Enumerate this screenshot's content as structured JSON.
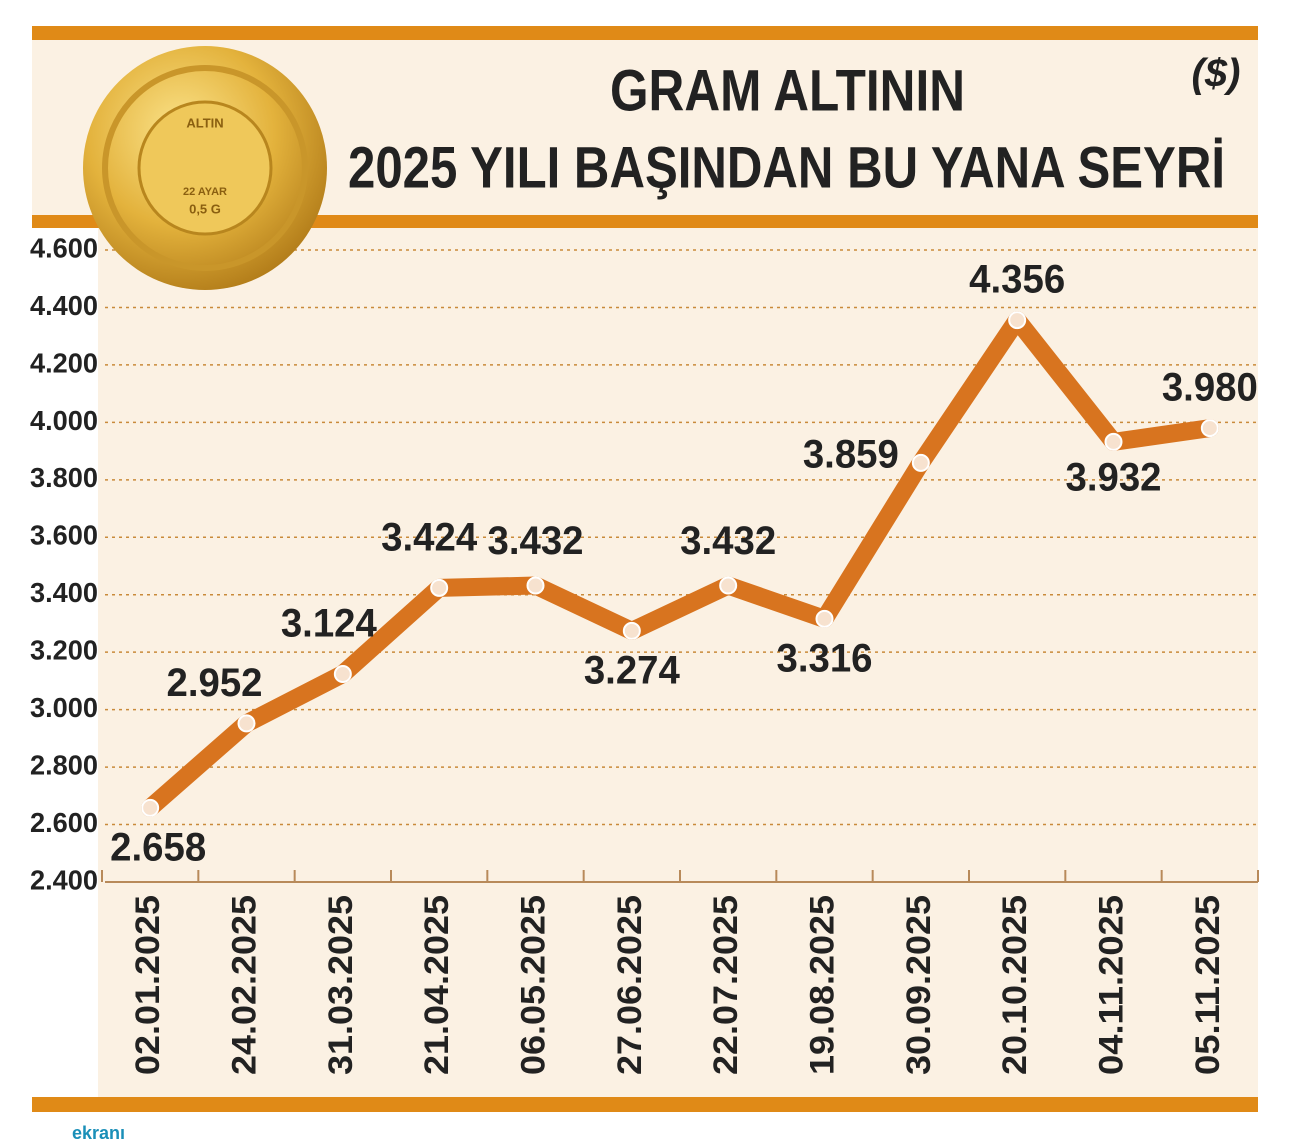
{
  "chart_data": {
    "type": "line",
    "title": [
      "GRAM ALTININ",
      "2025 YILI BAŞINDAN BU YANA SEYRİ"
    ],
    "unit_label": "($)",
    "coin_labels": [
      "ALTIN",
      "22 AYAR",
      "0,5 G"
    ],
    "source_logo": "ekranı",
    "categories": [
      "02.01.2025",
      "24.02.2025",
      "31.03.2025",
      "21.04.2025",
      "06.05.2025",
      "27.06.2025",
      "22.07.2025",
      "19.08.2025",
      "30.09.2025",
      "20.10.2025",
      "04.11.2025",
      "05.11.2025"
    ],
    "series": [
      {
        "name": "Gram altın",
        "color": "#d8741f",
        "values": [
          2658,
          2952,
          3124,
          3424,
          3432,
          3274,
          3432,
          3316,
          3859,
          4356,
          3932,
          3980
        ],
        "value_labels": [
          "2.658",
          "2.952",
          "3.124",
          "3.424",
          "3.432",
          "3.274",
          "3.432",
          "3.316",
          "3.859",
          "4.356",
          "3.932",
          "3.980"
        ]
      }
    ],
    "ylim": [
      2400,
      4600
    ],
    "yticks": [
      {
        "value": 2400,
        "label": "2.400"
      },
      {
        "value": 2600,
        "label": "2.600"
      },
      {
        "value": 2800,
        "label": "2.800"
      },
      {
        "value": 3000,
        "label": "3.000"
      },
      {
        "value": 3200,
        "label": "3.200"
      },
      {
        "value": 3400,
        "label": "3.400"
      },
      {
        "value": 3600,
        "label": "3.600"
      },
      {
        "value": 3800,
        "label": "3.800"
      },
      {
        "value": 4000,
        "label": "4.000"
      },
      {
        "value": 4200,
        "label": "4.200"
      },
      {
        "value": 4400,
        "label": "4.400"
      },
      {
        "value": 4600,
        "label": "4.600"
      }
    ],
    "grid": true
  }
}
